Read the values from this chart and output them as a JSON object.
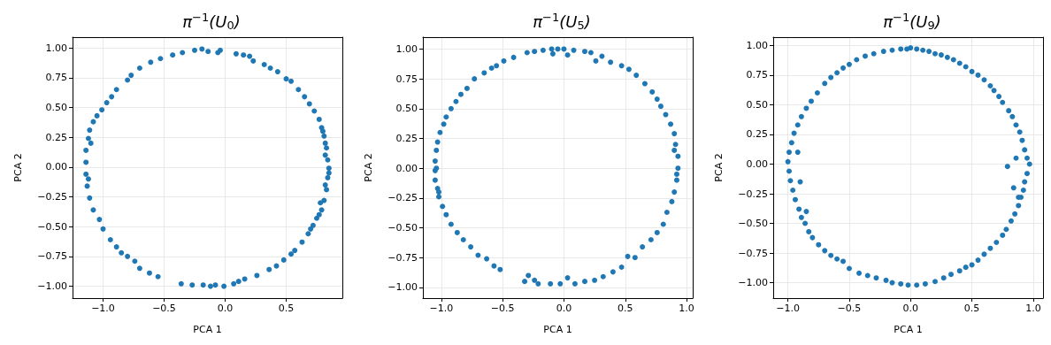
{
  "chart_data": [
    {
      "type": "scatter",
      "title": "π$^{−1}$(U$_{0}$)",
      "xlabel": "PCA 1",
      "ylabel": "PCA 2",
      "color": "#1f77b4",
      "marker": "circle",
      "grid": true,
      "xlim": [
        -1.25,
        0.96
      ],
      "ylim": [
        -1.1,
        1.09
      ],
      "xticks": [
        {
          "value": -1.0,
          "label": "−1.0"
        },
        {
          "value": -0.5,
          "label": "−0.5"
        },
        {
          "value": 0.0,
          "label": "0.0"
        },
        {
          "value": 0.5,
          "label": "0.5"
        }
      ],
      "yticks": [
        {
          "value": -1.0,
          "label": "−1.00"
        },
        {
          "value": -0.75,
          "label": "−0.75"
        },
        {
          "value": -0.5,
          "label": "−0.50"
        },
        {
          "value": -0.25,
          "label": "−0.25"
        },
        {
          "value": 0.0,
          "label": "0.00"
        },
        {
          "value": 0.25,
          "label": "0.25"
        },
        {
          "value": 0.5,
          "label": "0.50"
        },
        {
          "value": 0.75,
          "label": "0.75"
        },
        {
          "value": 1.0,
          "label": "1.00"
        }
      ],
      "x": [
        -0.25,
        -0.19,
        -0.14,
        -0.04,
        -0.06,
        0.09,
        0.15,
        0.2,
        0.23,
        0.32,
        0.37,
        0.43,
        0.5,
        0.54,
        0.6,
        0.65,
        0.69,
        0.73,
        0.77,
        0.79,
        0.81,
        0.83,
        0.84,
        0.85,
        0.84,
        0.83,
        0.81,
        0.79,
        0.75,
        0.72,
        0.68,
        0.63,
        0.57,
        0.54,
        0.48,
        0.42,
        0.36,
        0.26,
        0.16,
        0.11,
        0.07,
        -0.01,
        -0.08,
        -0.12,
        -0.18,
        -0.27,
        -0.36,
        -0.55,
        -0.62,
        -0.7,
        -0.74,
        -0.8,
        -0.85,
        -0.89,
        -0.94,
        -1.0,
        -1.03,
        -1.08,
        -1.11,
        -1.13,
        -1.14,
        -1.14,
        -1.14,
        -1.12,
        -1.11,
        -1.08,
        -1.05,
        -1.01,
        -0.97,
        -0.93,
        -0.89,
        -0.8,
        -0.77,
        -0.7,
        -0.61,
        -0.53,
        -0.43,
        -0.35,
        0.8,
        0.82,
        0.85,
        0.82,
        0.77,
        0.7,
        0.82,
        0.78,
        -1.12,
        -1.1
      ],
      "values": [
        0.98,
        0.99,
        0.97,
        0.98,
        0.96,
        0.95,
        0.94,
        0.93,
        0.89,
        0.86,
        0.83,
        0.8,
        0.74,
        0.72,
        0.65,
        0.59,
        0.53,
        0.47,
        0.4,
        0.33,
        0.26,
        0.16,
        0.06,
        -0.01,
        -0.09,
        -0.19,
        -0.28,
        -0.36,
        -0.43,
        -0.49,
        -0.56,
        -0.63,
        -0.7,
        -0.73,
        -0.78,
        -0.83,
        -0.86,
        -0.91,
        -0.94,
        -0.96,
        -0.98,
        -1.0,
        -0.99,
        -1.0,
        -0.99,
        -0.99,
        -0.98,
        -0.92,
        -0.89,
        -0.85,
        -0.79,
        -0.75,
        -0.72,
        -0.67,
        -0.61,
        -0.52,
        -0.44,
        -0.36,
        -0.26,
        -0.16,
        -0.06,
        0.04,
        0.14,
        0.24,
        0.31,
        0.38,
        0.43,
        0.48,
        0.54,
        0.59,
        0.65,
        0.73,
        0.77,
        0.83,
        0.88,
        0.91,
        0.94,
        0.96,
        0.3,
        0.1,
        -0.05,
        -0.15,
        -0.4,
        -0.52,
        0.2,
        -0.3,
        -0.1,
        0.2
      ]
    },
    {
      "type": "scatter",
      "title": "π$^{−1}$(U$_{5}$)",
      "xlabel": "PCA 1",
      "ylabel": "PCA 2",
      "color": "#1f77b4",
      "marker": "circle",
      "grid": true,
      "xlim": [
        -1.15,
        1.05
      ],
      "ylim": [
        -1.09,
        1.1
      ],
      "xticks": [
        {
          "value": -1.0,
          "label": "−1.0"
        },
        {
          "value": -0.5,
          "label": "−0.5"
        },
        {
          "value": 0.0,
          "label": "0.0"
        },
        {
          "value": 0.5,
          "label": "0.5"
        },
        {
          "value": 1.0,
          "label": "1.0"
        }
      ],
      "yticks": [
        {
          "value": -1.0,
          "label": "−1.00"
        },
        {
          "value": -0.75,
          "label": "−0.75"
        },
        {
          "value": -0.5,
          "label": "−0.50"
        },
        {
          "value": -0.25,
          "label": "−0.25"
        },
        {
          "value": 0.0,
          "label": "0.00"
        },
        {
          "value": 0.25,
          "label": "0.25"
        },
        {
          "value": 0.5,
          "label": "0.50"
        },
        {
          "value": 0.75,
          "label": "0.75"
        },
        {
          "value": 1.0,
          "label": "1.00"
        }
      ],
      "x": [
        -0.1,
        -0.05,
        0.0,
        0.08,
        0.03,
        -0.09,
        -0.17,
        -0.24,
        -0.3,
        -0.41,
        -0.49,
        -0.55,
        -0.59,
        -0.65,
        -0.73,
        -0.79,
        -0.84,
        -0.88,
        -0.92,
        -0.96,
        -0.98,
        -1.01,
        -1.03,
        -1.04,
        -1.05,
        -1.05,
        -1.05,
        -1.03,
        -1.02,
        -0.99,
        -0.96,
        -0.92,
        -0.87,
        -0.82,
        -0.76,
        -0.7,
        -0.63,
        -0.57,
        -0.52,
        -0.29,
        -0.32,
        -0.24,
        -0.21,
        -0.11,
        -0.03,
        0.03,
        0.09,
        0.17,
        0.25,
        0.32,
        0.4,
        0.47,
        0.52,
        0.58,
        0.64,
        0.71,
        0.76,
        0.81,
        0.84,
        0.88,
        0.9,
        0.92,
        0.93,
        0.93,
        0.91,
        0.9,
        0.87,
        0.83,
        0.79,
        0.76,
        0.72,
        0.66,
        0.59,
        0.53,
        0.47,
        0.38,
        0.31,
        0.26,
        0.22,
        0.17,
        0.92,
        0.9,
        -1.04,
        -1.02
      ],
      "values": [
        1.0,
        1.0,
        1.0,
        0.99,
        0.95,
        0.96,
        0.99,
        0.98,
        0.97,
        0.93,
        0.9,
        0.86,
        0.84,
        0.8,
        0.75,
        0.67,
        0.62,
        0.56,
        0.5,
        0.43,
        0.37,
        0.3,
        0.22,
        0.15,
        0.06,
        -0.02,
        -0.1,
        -0.17,
        -0.24,
        -0.32,
        -0.39,
        -0.47,
        -0.54,
        -0.6,
        -0.66,
        -0.73,
        -0.76,
        -0.82,
        -0.85,
        -0.9,
        -0.95,
        -0.94,
        -0.97,
        -0.97,
        -0.97,
        -0.92,
        -0.97,
        -0.95,
        -0.94,
        -0.91,
        -0.87,
        -0.83,
        -0.74,
        -0.75,
        -0.66,
        -0.6,
        -0.54,
        -0.47,
        -0.37,
        -0.28,
        -0.2,
        -0.1,
        0.0,
        0.1,
        0.2,
        0.29,
        0.37,
        0.45,
        0.52,
        0.58,
        0.64,
        0.71,
        0.78,
        0.83,
        0.86,
        0.89,
        0.94,
        0.9,
        0.97,
        0.98,
        -0.05,
        0.15,
        0.0,
        -0.2
      ]
    },
    {
      "type": "scatter",
      "title": "π$^{−1}$(U$_{9}$)",
      "xlabel": "PCA 1",
      "ylabel": "PCA 2",
      "color": "#1f77b4",
      "marker": "circle",
      "grid": true,
      "xlim": [
        -1.12,
        1.08
      ],
      "ylim": [
        -1.13,
        1.07
      ],
      "xticks": [
        {
          "value": -1.0,
          "label": "−1.0"
        },
        {
          "value": -0.5,
          "label": "−0.5"
        },
        {
          "value": 0.0,
          "label": "0.0"
        },
        {
          "value": 0.5,
          "label": "0.5"
        },
        {
          "value": 1.0,
          "label": "1.0"
        }
      ],
      "yticks": [
        {
          "value": -1.0,
          "label": "−1.00"
        },
        {
          "value": -0.75,
          "label": "−0.75"
        },
        {
          "value": -0.5,
          "label": "−0.50"
        },
        {
          "value": -0.25,
          "label": "−0.25"
        },
        {
          "value": 0.0,
          "label": "0.00"
        },
        {
          "value": 0.25,
          "label": "0.25"
        },
        {
          "value": 0.5,
          "label": "0.50"
        },
        {
          "value": 0.75,
          "label": "0.75"
        },
        {
          "value": 1.0,
          "label": "1.00"
        }
      ],
      "x": [
        0.0,
        0.05,
        0.1,
        0.15,
        0.2,
        0.25,
        0.3,
        0.35,
        0.4,
        0.45,
        0.5,
        0.55,
        0.6,
        0.65,
        0.68,
        0.72,
        0.75,
        0.8,
        0.83,
        0.86,
        0.89,
        0.91,
        0.93,
        0.95,
        0.97,
        0.95,
        0.93,
        0.92,
        0.9,
        0.88,
        0.85,
        0.82,
        0.78,
        0.75,
        0.7,
        0.65,
        0.6,
        0.55,
        0.5,
        0.45,
        0.4,
        0.33,
        0.27,
        0.2,
        0.12,
        0.05,
        -0.02,
        -0.08,
        -0.15,
        -0.2,
        -0.28,
        -0.35,
        -0.42,
        -0.5,
        -0.55,
        -0.6,
        -0.65,
        -0.7,
        -0.75,
        -0.8,
        -0.83,
        -0.86,
        -0.89,
        -0.91,
        -0.94,
        -0.96,
        -0.98,
        -0.99,
        -1.0,
        -0.99,
        -0.97,
        -0.95,
        -0.92,
        -0.89,
        -0.85,
        -0.81,
        -0.76,
        -0.7,
        -0.65,
        -0.6,
        -0.55,
        -0.5,
        -0.44,
        -0.37,
        -0.3,
        -0.22,
        -0.15,
        -0.08,
        -0.03,
        0.84,
        0.86,
        0.88,
        0.79,
        -0.92,
        -0.9,
        -0.85
      ],
      "values": [
        0.98,
        0.97,
        0.96,
        0.95,
        0.93,
        0.92,
        0.9,
        0.88,
        0.85,
        0.82,
        0.78,
        0.75,
        0.71,
        0.66,
        0.62,
        0.57,
        0.52,
        0.45,
        0.4,
        0.33,
        0.27,
        0.2,
        0.12,
        0.05,
        0.0,
        -0.08,
        -0.15,
        -0.22,
        -0.28,
        -0.35,
        -0.42,
        -0.48,
        -0.55,
        -0.6,
        -0.66,
        -0.71,
        -0.76,
        -0.81,
        -0.85,
        -0.87,
        -0.9,
        -0.93,
        -0.96,
        -0.99,
        -1.01,
        -1.02,
        -1.02,
        -1.01,
        -1.0,
        -0.98,
        -0.96,
        -0.94,
        -0.92,
        -0.88,
        -0.82,
        -0.8,
        -0.77,
        -0.73,
        -0.68,
        -0.62,
        -0.57,
        -0.5,
        -0.45,
        -0.38,
        -0.3,
        -0.22,
        -0.14,
        -0.06,
        0.02,
        0.1,
        0.18,
        0.26,
        0.33,
        0.4,
        0.47,
        0.53,
        0.6,
        0.68,
        0.73,
        0.77,
        0.81,
        0.84,
        0.88,
        0.91,
        0.93,
        0.95,
        0.96,
        0.97,
        0.97,
        -0.2,
        0.05,
        -0.28,
        -0.02,
        0.1,
        -0.15,
        -0.4
      ]
    }
  ]
}
